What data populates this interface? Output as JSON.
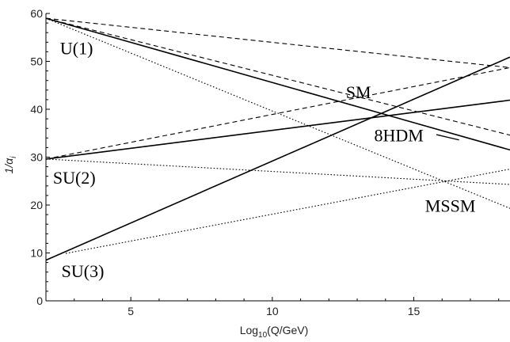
{
  "chart_data": {
    "type": "line",
    "xlabel": "Log",
    "xlabel_sub": "10",
    "xlabel_rest": "(Q/GeV)",
    "ylabel": "1/α",
    "ylabel_sub": "i",
    "xlim": [
      2,
      18.4
    ],
    "ylim": [
      0,
      60
    ],
    "xticks": [
      5,
      10,
      15
    ],
    "yticks": [
      0,
      10,
      20,
      30,
      40,
      50,
      60
    ],
    "grid": false,
    "legend": "none",
    "series": [
      {
        "style": "dashed",
        "points": [
          [
            2,
            59.0
          ],
          [
            18.4,
            48.7
          ]
        ]
      },
      {
        "style": "dashed",
        "points": [
          [
            2,
            29.6
          ],
          [
            18.4,
            48.7
          ]
        ]
      },
      {
        "style": "dashed",
        "points": [
          [
            2,
            59.0
          ],
          [
            18.4,
            34.6
          ]
        ]
      },
      {
        "style": "dotted",
        "points": [
          [
            2,
            59.0
          ],
          [
            18.4,
            19.3
          ]
        ]
      },
      {
        "style": "dotted",
        "points": [
          [
            2,
            29.6
          ],
          [
            18.4,
            24.3
          ]
        ]
      },
      {
        "style": "dotted",
        "points": [
          [
            2.7,
            9.9
          ],
          [
            18.4,
            27.5
          ]
        ]
      },
      {
        "style": "solid",
        "points": [
          [
            2,
            59.0
          ],
          [
            18.4,
            31.5
          ]
        ]
      },
      {
        "style": "solid",
        "points": [
          [
            2,
            29.6
          ],
          [
            18.4,
            41.9
          ]
        ]
      },
      {
        "style": "solid",
        "points": [
          [
            2,
            8.5
          ],
          [
            18.4,
            50.9
          ]
        ]
      }
    ],
    "annotations": [
      {
        "text": "U(1)",
        "x": 2.5,
        "y": 51.5
      },
      {
        "text": "SU(2)",
        "x": 2.25,
        "y": 24.5
      },
      {
        "text": "SU(3)",
        "x": 2.55,
        "y": 5.0
      },
      {
        "text": "SM",
        "x": 12.6,
        "y": 42.3
      },
      {
        "text": "8HDM",
        "x": 13.6,
        "y": 33.3
      },
      {
        "text": "MSSM",
        "x": 15.4,
        "y": 18.6
      }
    ],
    "pointer": {
      "from": [
        15.8,
        34.7
      ],
      "to": [
        16.6,
        33.6
      ]
    }
  }
}
